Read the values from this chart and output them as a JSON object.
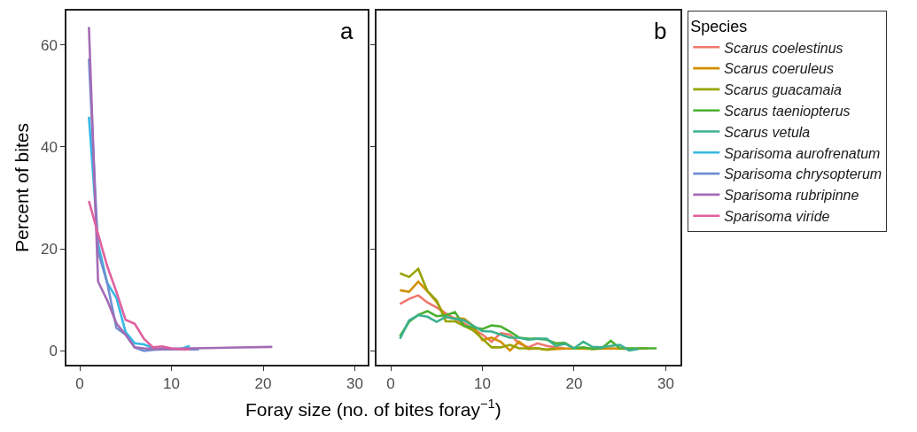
{
  "chart_data": [
    {
      "type": "line",
      "title": "a",
      "xlabel": "Foray size (no. of bites foray$^{−1}$)",
      "ylabel": "Percent of bites",
      "legend": "right",
      "legend_title": "Species",
      "line_style": "solid",
      "grid": false,
      "xlim": [
        -1.45,
        31.4
      ],
      "xticks": [
        0,
        10,
        20,
        30
      ],
      "ylim": [
        -2.7,
        66.7
      ],
      "yticks": [
        0,
        20,
        40,
        60
      ],
      "series": [
        {
          "name": "Sparisoma aurofrenatum",
          "color": "#35b8e3",
          "x": [
            1,
            2,
            3,
            4,
            5,
            6,
            7,
            8,
            9,
            10,
            11,
            12
          ],
          "values": [
            45.9,
            21,
            13.3,
            10.4,
            3.7,
            1.5,
            1.3,
            0.6,
            0.5,
            0.4,
            0.4,
            1.0
          ]
        },
        {
          "name": "Sparisoma chrysopterum",
          "color": "#6f8fd0",
          "x": [
            1,
            2,
            3,
            4,
            5,
            6,
            7,
            8,
            9,
            10,
            11,
            12,
            13
          ],
          "values": [
            57.3,
            19.5,
            13.3,
            4.5,
            3.2,
            0.7,
            0,
            0.2,
            0.3,
            0.3,
            0.3,
            0.3,
            0.3
          ]
        },
        {
          "name": "Sparisoma rubripinne",
          "color": "#a56bb5",
          "x": [
            1,
            2,
            3,
            4,
            5,
            6,
            7,
            8,
            10,
            12,
            15,
            21
          ],
          "values": [
            63.5,
            13.6,
            9.9,
            5.4,
            3.2,
            0.7,
            0.5,
            0.4,
            0.4,
            0.5,
            0.6,
            0.8
          ]
        },
        {
          "name": "Sparisoma viride",
          "color": "#e0609f",
          "x": [
            1,
            2,
            3,
            4,
            5,
            6,
            7,
            8,
            9,
            10,
            11,
            12
          ],
          "values": [
            29.4,
            22.9,
            16.6,
            11.6,
            6.1,
            5.3,
            2.4,
            0.7,
            0.9,
            0.5,
            0.3,
            0.3
          ]
        }
      ]
    },
    {
      "type": "line",
      "title": "b",
      "legend": "right",
      "line_style": "solid",
      "grid": false,
      "tick_labels": "x",
      "xlim": [
        -1.55,
        31.6
      ],
      "xticks": [
        0,
        10,
        20,
        30
      ],
      "ylim": [
        -2.7,
        66.7
      ],
      "yticks": [
        0,
        20,
        40,
        60
      ],
      "series": [
        {
          "name": "Scarus coelestinus",
          "color": "#f0776d",
          "x": [
            1,
            2,
            3,
            4,
            5,
            6,
            7,
            8,
            9,
            10,
            11,
            12,
            13,
            14,
            15,
            16,
            17,
            18,
            19
          ],
          "values": [
            9.2,
            10.2,
            10.9,
            9.5,
            8.5,
            7.4,
            6.3,
            5.4,
            4.3,
            3.2,
            1.8,
            3.5,
            3.2,
            1.5,
            0.7,
            1.5,
            1.0,
            0.7,
            0.5
          ]
        },
        {
          "name": "Scarus coeruleus",
          "color": "#d38f00",
          "x": [
            1,
            2,
            3,
            4,
            5,
            6,
            7,
            8,
            9,
            10,
            11,
            12,
            13,
            14,
            15,
            16,
            17,
            18,
            20,
            22,
            24,
            26,
            28
          ],
          "values": [
            11.9,
            11.6,
            13.6,
            11.7,
            9.6,
            6.6,
            6.4,
            6.3,
            4.9,
            2.1,
            2.6,
            1.8,
            0.1,
            1.8,
            0.4,
            0.5,
            0.2,
            0.4,
            0.5,
            0.4,
            0.5,
            0.4,
            0.5
          ]
        },
        {
          "name": "Scarus guacamaia",
          "color": "#97a300",
          "x": [
            1,
            2,
            3,
            4,
            5,
            6,
            7,
            8,
            9,
            10,
            11,
            12,
            13,
            14,
            15,
            16,
            17,
            18
          ],
          "values": [
            15.2,
            14.5,
            16.1,
            11.7,
            9.9,
            5.8,
            5.8,
            4.9,
            4.0,
            2.4,
            0.7,
            0.7,
            1.2,
            0.5,
            0.5,
            0.5,
            0.3,
            0.5
          ]
        },
        {
          "name": "Scarus taeniopterus",
          "color": "#4bb030",
          "x": [
            1,
            2,
            3,
            4,
            5,
            6,
            7,
            8,
            9,
            10,
            11,
            12,
            13,
            14,
            15,
            16,
            17,
            18,
            19,
            20,
            21,
            22,
            23,
            24,
            25,
            26,
            27,
            28,
            29
          ],
          "values": [
            2.9,
            5.7,
            7.1,
            7.8,
            6.8,
            7.0,
            7.6,
            4.9,
            4.6,
            4.3,
            5.0,
            4.8,
            3.8,
            2.6,
            2.4,
            2.4,
            2.2,
            1.5,
            1.6,
            0.5,
            0.7,
            0.4,
            0.5,
            2.0,
            0.5,
            0.5,
            0.5,
            0.5,
            0.5
          ]
        },
        {
          "name": "Scarus vetula",
          "color": "#3cb08f",
          "x": [
            1,
            2,
            3,
            4,
            5,
            6,
            7,
            8,
            9,
            10,
            11,
            12,
            13,
            14,
            15,
            16,
            17,
            18,
            19,
            20,
            21,
            22,
            23,
            24,
            25,
            26,
            27
          ],
          "values": [
            2.4,
            6.0,
            7.0,
            6.7,
            5.7,
            6.7,
            6.3,
            6.0,
            4.9,
            3.9,
            3.8,
            3.2,
            2.6,
            2.6,
            2.2,
            2.4,
            2.4,
            1.0,
            1.4,
            0.5,
            1.8,
            0.8,
            0.7,
            1.0,
            1.2,
            0.1,
            0.4
          ]
        }
      ]
    }
  ]
}
